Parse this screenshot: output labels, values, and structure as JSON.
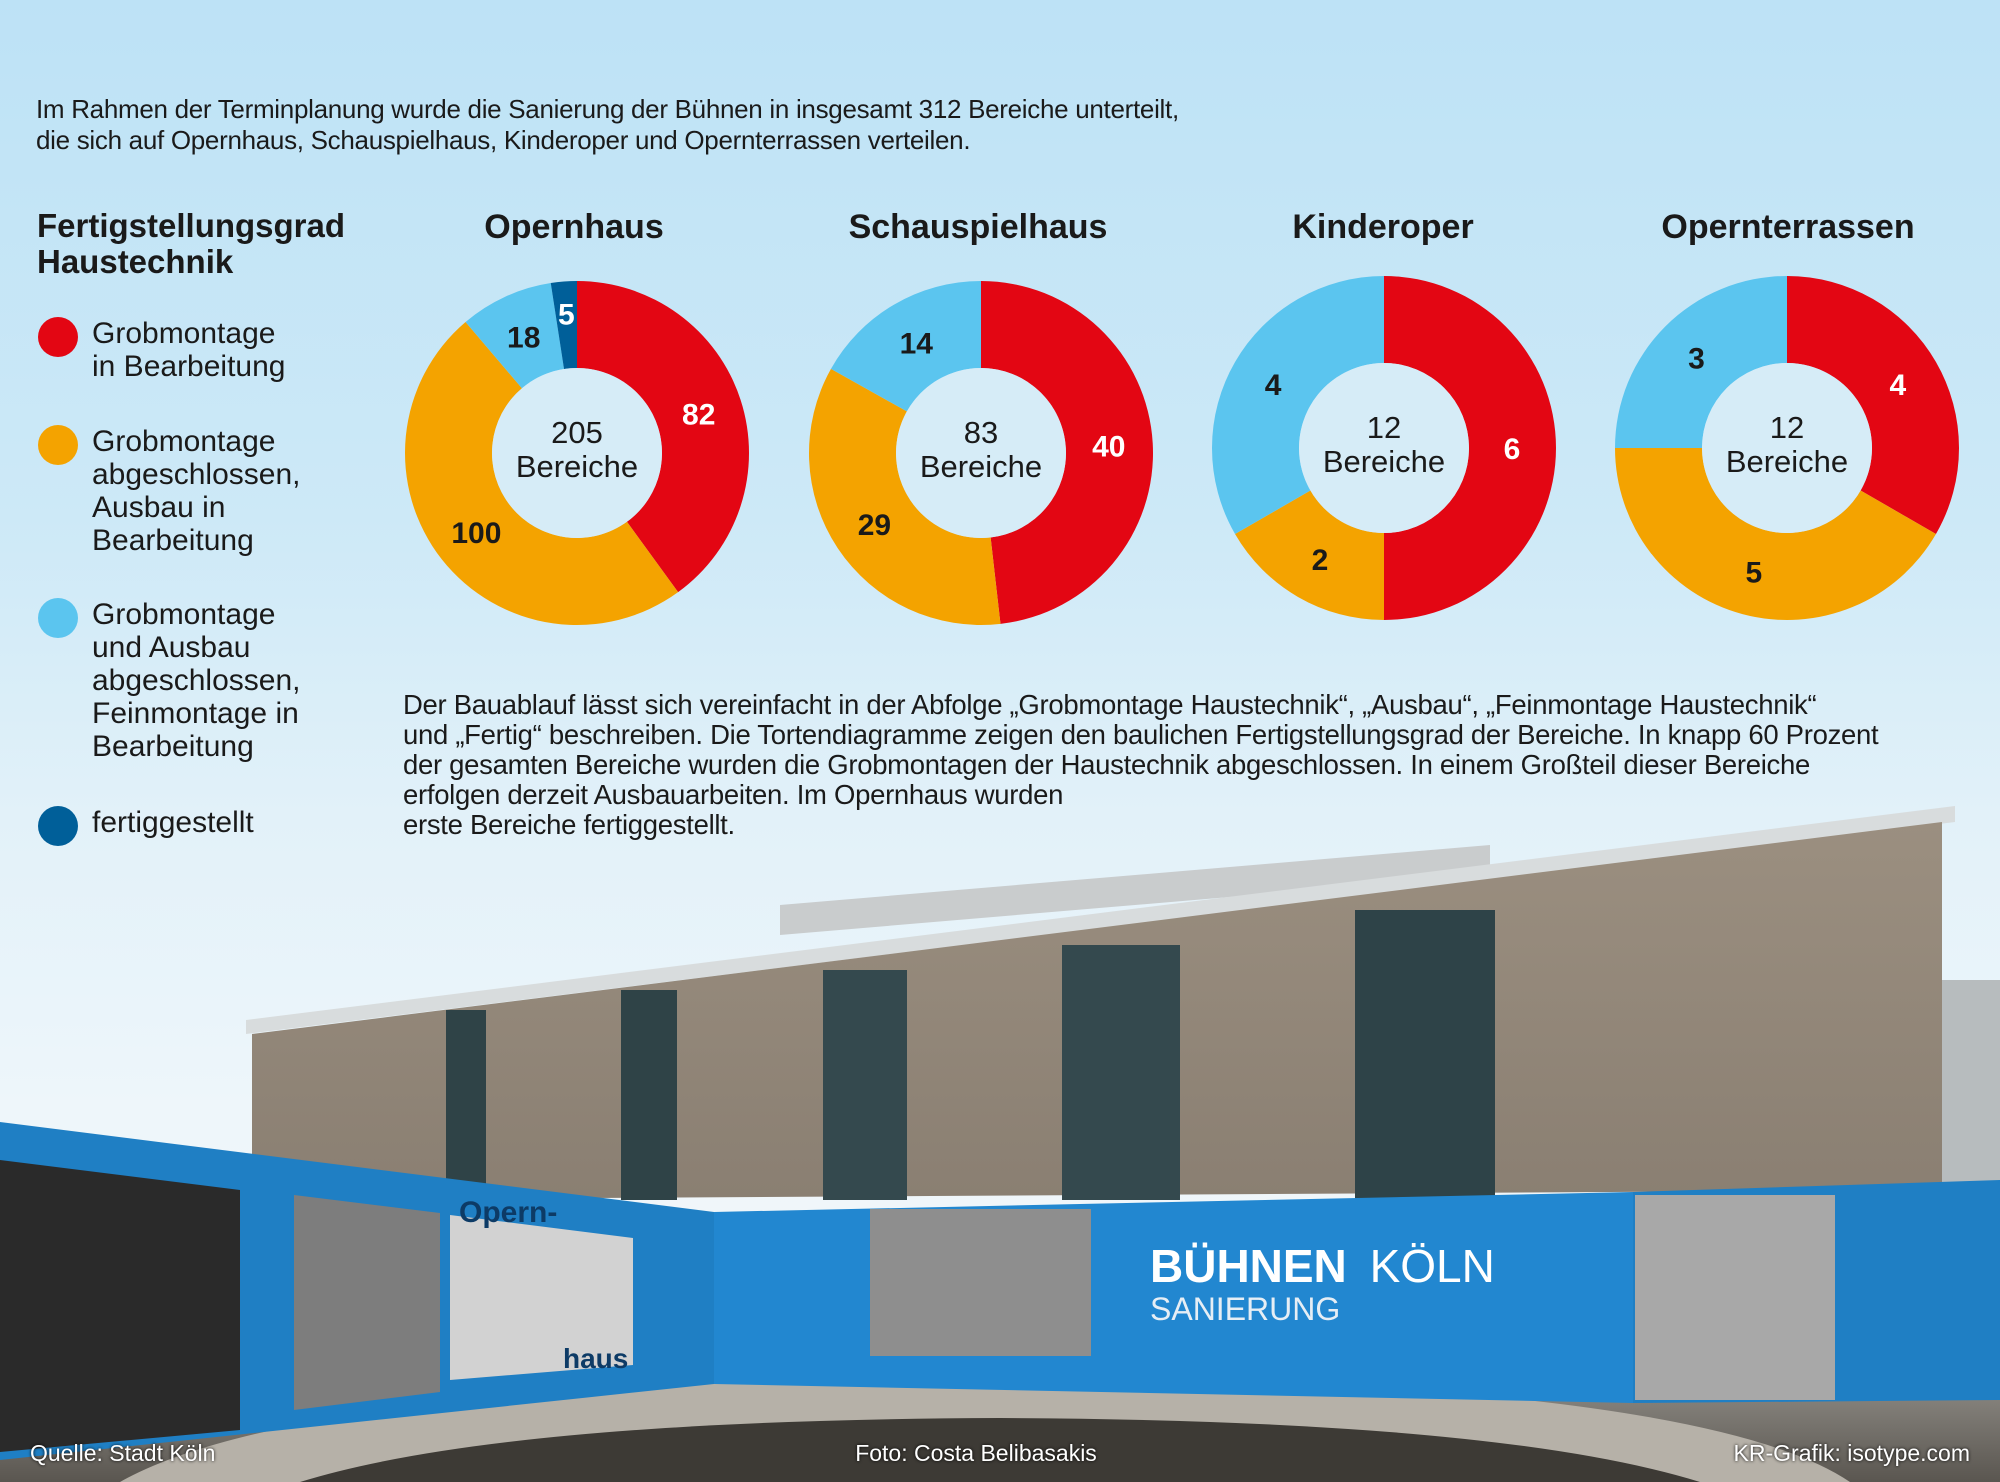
{
  "intro": {
    "line1": "Im Rahmen der Terminplanung wurde die Sanierung der Bühnen in insgesamt 312 Bereiche unterteilt,",
    "line2": "die sich auf Opernhaus, Schauspielhaus, Kinderoper und Opernterrassen verteilen."
  },
  "legend": {
    "title_line1": "Fertigstellungsgrad",
    "title_line2": "Haustechnik",
    "items": [
      {
        "label": "Grobmontage\nin Bearbeitung",
        "color": "#e30613"
      },
      {
        "label": "Grobmontage\nabgeschlossen,\nAusbau in\nBearbeitung",
        "color": "#f4a300"
      },
      {
        "label": "Grobmontage\nund Ausbau\nabgeschlossen,\nFeinmontage in\nBearbeitung",
        "color": "#5bc5ef"
      },
      {
        "label": "fertiggestellt",
        "color": "#005f99"
      }
    ]
  },
  "chart_data": [
    {
      "type": "pie",
      "title": "Opernhaus",
      "center_number": "205",
      "center_label": "Bereiche",
      "categories": [
        "Grobmontage in Bearbeitung",
        "Grobmontage abgeschlossen, Ausbau in Bearbeitung",
        "Grobmontage und Ausbau abgeschlossen, Feinmontage in Bearbeitung",
        "fertiggestellt"
      ],
      "values": [
        82,
        100,
        18,
        5
      ]
    },
    {
      "type": "pie",
      "title": "Schauspielhaus",
      "center_number": "83",
      "center_label": "Bereiche",
      "categories": [
        "Grobmontage in Bearbeitung",
        "Grobmontage abgeschlossen, Ausbau in Bearbeitung",
        "Grobmontage und Ausbau abgeschlossen, Feinmontage in Bearbeitung"
      ],
      "values": [
        40,
        29,
        14
      ]
    },
    {
      "type": "pie",
      "title": "Kinderoper",
      "center_number": "12",
      "center_label": "Bereiche",
      "categories": [
        "Grobmontage in Bearbeitung",
        "Grobmontage abgeschlossen, Ausbau in Bearbeitung",
        "Grobmontage und Ausbau abgeschlossen, Feinmontage in Bearbeitung"
      ],
      "values": [
        6,
        2,
        4
      ]
    },
    {
      "type": "pie",
      "title": "Opernterrassen",
      "center_number": "12",
      "center_label": "Bereiche",
      "categories": [
        "Grobmontage in Bearbeitung",
        "Grobmontage abgeschlossen, Ausbau in Bearbeitung",
        "Grobmontage und Ausbau abgeschlossen, Feinmontage in Bearbeitung"
      ],
      "values": [
        4,
        5,
        3
      ]
    }
  ],
  "colors": [
    "#e30613",
    "#f4a300",
    "#5bc5ef",
    "#005f99"
  ],
  "body_text": "Der Bauablauf lässt sich vereinfacht in der Abfolge „Grobmontage Haustechnik“, „Ausbau“, „Feinmontage Haustechnik“\nund „Fertig“ beschreiben. Die Tortendiagramme zeigen den baulichen Fertigstellungsgrad der Bereiche. In knapp 60 Prozent\nder gesamten Bereiche wurden die Grobmontagen der Haustechnik abgeschlossen. In einem Großteil dieser Bereiche\nerfolgen derzeit Ausbauarbeiten. Im Opernhaus wurden\nerste Bereiche fertiggestellt.",
  "photo": {
    "sign_bold": "BÜHNEN",
    "sign_light": "KÖLN",
    "sign_sub": "SANIERUNG",
    "banner_top": "Opern-",
    "banner_bottom": "haus"
  },
  "footer": {
    "source": "Quelle: Stadt Köln",
    "photo_credit": "Foto: Costa Belibasakis",
    "graphic_credit": "KR-Grafik: isotype.com"
  }
}
